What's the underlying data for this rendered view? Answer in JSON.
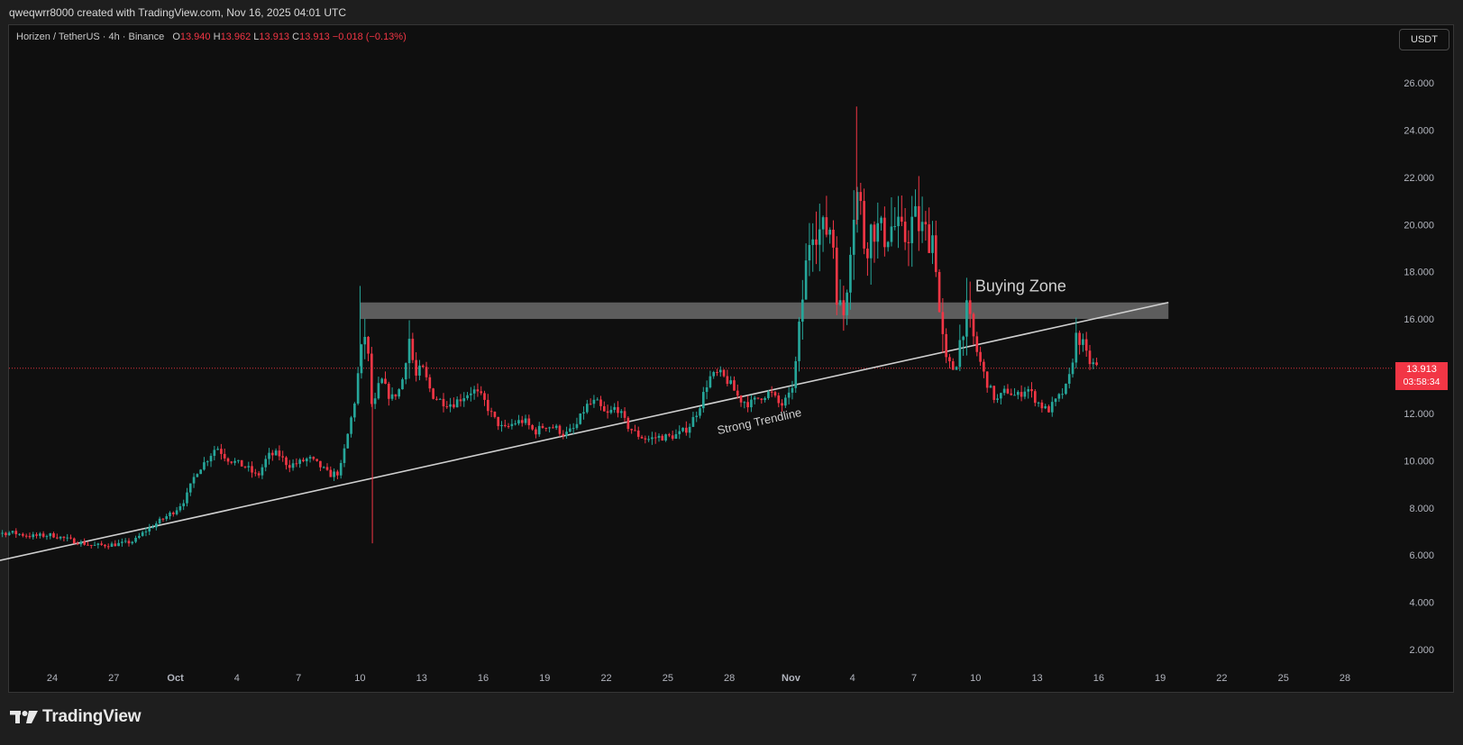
{
  "header": {
    "attribution": "qweqwrr8000 created with TradingView.com, Nov 16, 2025 04:01 UTC"
  },
  "symbol": {
    "name": "Horizen / TetherUS · 4h · Binance",
    "o_key": "O",
    "o_val": "13.940",
    "h_key": "H",
    "h_val": "13.962",
    "l_key": "L",
    "l_val": "13.913",
    "c_key": "C",
    "c_val": "13.913",
    "change": "−0.018 (−0.13%)"
  },
  "currency_button": "USDT",
  "price_badge": {
    "price": "13.913",
    "countdown": "03:58:34"
  },
  "logo": {
    "text": "TradingView",
    "icon": "tradingview-logo-icon"
  },
  "colors": {
    "up": "#26a69a",
    "down": "#f23645",
    "background": "#0f0f0f",
    "text": "#b2b5be",
    "zone": "#6b6b6b",
    "trendline": "#bdbdbd"
  },
  "chart_data": {
    "type": "candlestick",
    "symbol": "Horizen / TetherUS",
    "interval": "4h",
    "exchange": "Binance",
    "ylim": [
      1,
      27
    ],
    "yticks": [
      2,
      4,
      6,
      8,
      10,
      12,
      14,
      16,
      18,
      20,
      22,
      24,
      26
    ],
    "ytick_labels": [
      "2.000",
      "4.000",
      "6.000",
      "8.000",
      "10.000",
      "12.000",
      "14.000",
      "16.000",
      "18.000",
      "20.000",
      "22.000",
      "24.000",
      "26.000"
    ],
    "x_range_days": [
      -26.7,
      33.3
    ],
    "xticks": [
      {
        "label": "24",
        "day": -22
      },
      {
        "label": "27",
        "day": -19
      },
      {
        "label": "Oct",
        "day": -16
      },
      {
        "label": "4",
        "day": -13
      },
      {
        "label": "7",
        "day": -10
      },
      {
        "label": "10",
        "day": -7
      },
      {
        "label": "13",
        "day": -4
      },
      {
        "label": "16",
        "day": -1
      },
      {
        "label": "19",
        "day": 2
      },
      {
        "label": "22",
        "day": 5
      },
      {
        "label": "25",
        "day": 8
      },
      {
        "label": "28",
        "day": 11
      },
      {
        "label": "Nov",
        "day": 14
      },
      {
        "label": "4",
        "day": 17
      },
      {
        "label": "7",
        "day": 20
      },
      {
        "label": "10",
        "day": 23
      },
      {
        "label": "13",
        "day": 26
      },
      {
        "label": "16",
        "day": 29
      },
      {
        "label": "19",
        "day": 32
      },
      {
        "label": "22",
        "day": 35
      },
      {
        "label": "25",
        "day": 38
      },
      {
        "label": "28",
        "day": 41
      }
    ],
    "last_price": 13.913,
    "zone": {
      "label": "Buying Zone",
      "y_low": 16.0,
      "y_high": 16.7
    },
    "trendline": {
      "label": "Strong Trendline",
      "start": {
        "day": -26.5,
        "price": 5.4
      },
      "end": {
        "day": 32.4,
        "price": 16.7
      }
    },
    "close_path": [
      [
        -26.6,
        7.4
      ],
      [
        -26.1,
        6.8
      ],
      [
        -25,
        6.9
      ],
      [
        -24,
        6.95
      ],
      [
        -23,
        6.8
      ],
      [
        -22,
        6.85
      ],
      [
        -21,
        6.6
      ],
      [
        -20,
        6.4
      ],
      [
        -19,
        6.45
      ],
      [
        -18.5,
        6.5
      ],
      [
        -18,
        6.6
      ],
      [
        -17.5,
        7.0
      ],
      [
        -17,
        7.3
      ],
      [
        -16.5,
        7.6
      ],
      [
        -16,
        7.9
      ],
      [
        -15.5,
        8.4
      ],
      [
        -15,
        9.5
      ],
      [
        -14.5,
        10.0
      ],
      [
        -14,
        10.6
      ],
      [
        -13.5,
        10.1
      ],
      [
        -13,
        9.9
      ],
      [
        -12.5,
        9.7
      ],
      [
        -12,
        9.3
      ],
      [
        -11.5,
        10.2
      ],
      [
        -11,
        10.3
      ],
      [
        -10.5,
        9.8
      ],
      [
        -10,
        9.9
      ],
      [
        -9.5,
        10.1
      ],
      [
        -9,
        9.8
      ],
      [
        -8.5,
        9.4
      ],
      [
        -8,
        9.5
      ],
      [
        -7.5,
        11.5
      ],
      [
        -7.2,
        12.8
      ],
      [
        -7,
        14.5
      ],
      [
        -6.7,
        15.6
      ],
      [
        -6.4,
        12.0
      ],
      [
        -6,
        13.5
      ],
      [
        -5.5,
        12.6
      ],
      [
        -5,
        13.1
      ],
      [
        -4.6,
        15.2
      ],
      [
        -4.3,
        13.5
      ],
      [
        -4,
        14.0
      ],
      [
        -3.5,
        12.8
      ],
      [
        -3,
        12.5
      ],
      [
        -2.5,
        12.4
      ],
      [
        -2,
        12.7
      ],
      [
        -1.5,
        13.0
      ],
      [
        -1,
        12.6
      ],
      [
        -0.5,
        11.8
      ],
      [
        0,
        11.3
      ],
      [
        0.5,
        11.6
      ],
      [
        1,
        11.7
      ],
      [
        1.5,
        11.2
      ],
      [
        2,
        11.5
      ],
      [
        2.5,
        11.4
      ],
      [
        3,
        11.1
      ],
      [
        3.5,
        11.4
      ],
      [
        4,
        12.3
      ],
      [
        4.5,
        12.5
      ],
      [
        5,
        11.9
      ],
      [
        5.5,
        12.3
      ],
      [
        6,
        11.5
      ],
      [
        6.5,
        11.1
      ],
      [
        7,
        10.9
      ],
      [
        7.5,
        11.0
      ],
      [
        8,
        11.0
      ],
      [
        8.5,
        11.1
      ],
      [
        9,
        11.4
      ],
      [
        9.5,
        12.2
      ],
      [
        10,
        13.5
      ],
      [
        10.5,
        13.7
      ],
      [
        11,
        13.3
      ],
      [
        11.5,
        12.6
      ],
      [
        12,
        12.4
      ],
      [
        12.5,
        12.7
      ],
      [
        13,
        12.9
      ],
      [
        13.5,
        12.3
      ],
      [
        14,
        12.8
      ],
      [
        14.3,
        14.5
      ],
      [
        14.6,
        17.2
      ],
      [
        15,
        20.2
      ],
      [
        15.5,
        19.6
      ],
      [
        16,
        20.0
      ],
      [
        16.3,
        16.5
      ],
      [
        16.6,
        16.2
      ],
      [
        17,
        20.5
      ],
      [
        17.3,
        21.5
      ],
      [
        17.6,
        19.0
      ],
      [
        18,
        20.0
      ],
      [
        18.5,
        19.5
      ],
      [
        19,
        20.0
      ],
      [
        19.5,
        19.3
      ],
      [
        20,
        20.3
      ],
      [
        20.5,
        19.6
      ],
      [
        21,
        19.5
      ],
      [
        21.2,
        16.5
      ],
      [
        21.5,
        14.3
      ],
      [
        22,
        13.8
      ],
      [
        22.5,
        16.4
      ],
      [
        23,
        14.8
      ],
      [
        23.5,
        13.4
      ],
      [
        24,
        12.5
      ],
      [
        24.5,
        13.0
      ],
      [
        25,
        12.7
      ],
      [
        25.5,
        13.1
      ],
      [
        26,
        12.5
      ],
      [
        26.5,
        12.1
      ],
      [
        27,
        12.6
      ],
      [
        27.5,
        13.2
      ],
      [
        28,
        15.6
      ],
      [
        28.5,
        14.2
      ],
      [
        29,
        13.91
      ]
    ]
  }
}
